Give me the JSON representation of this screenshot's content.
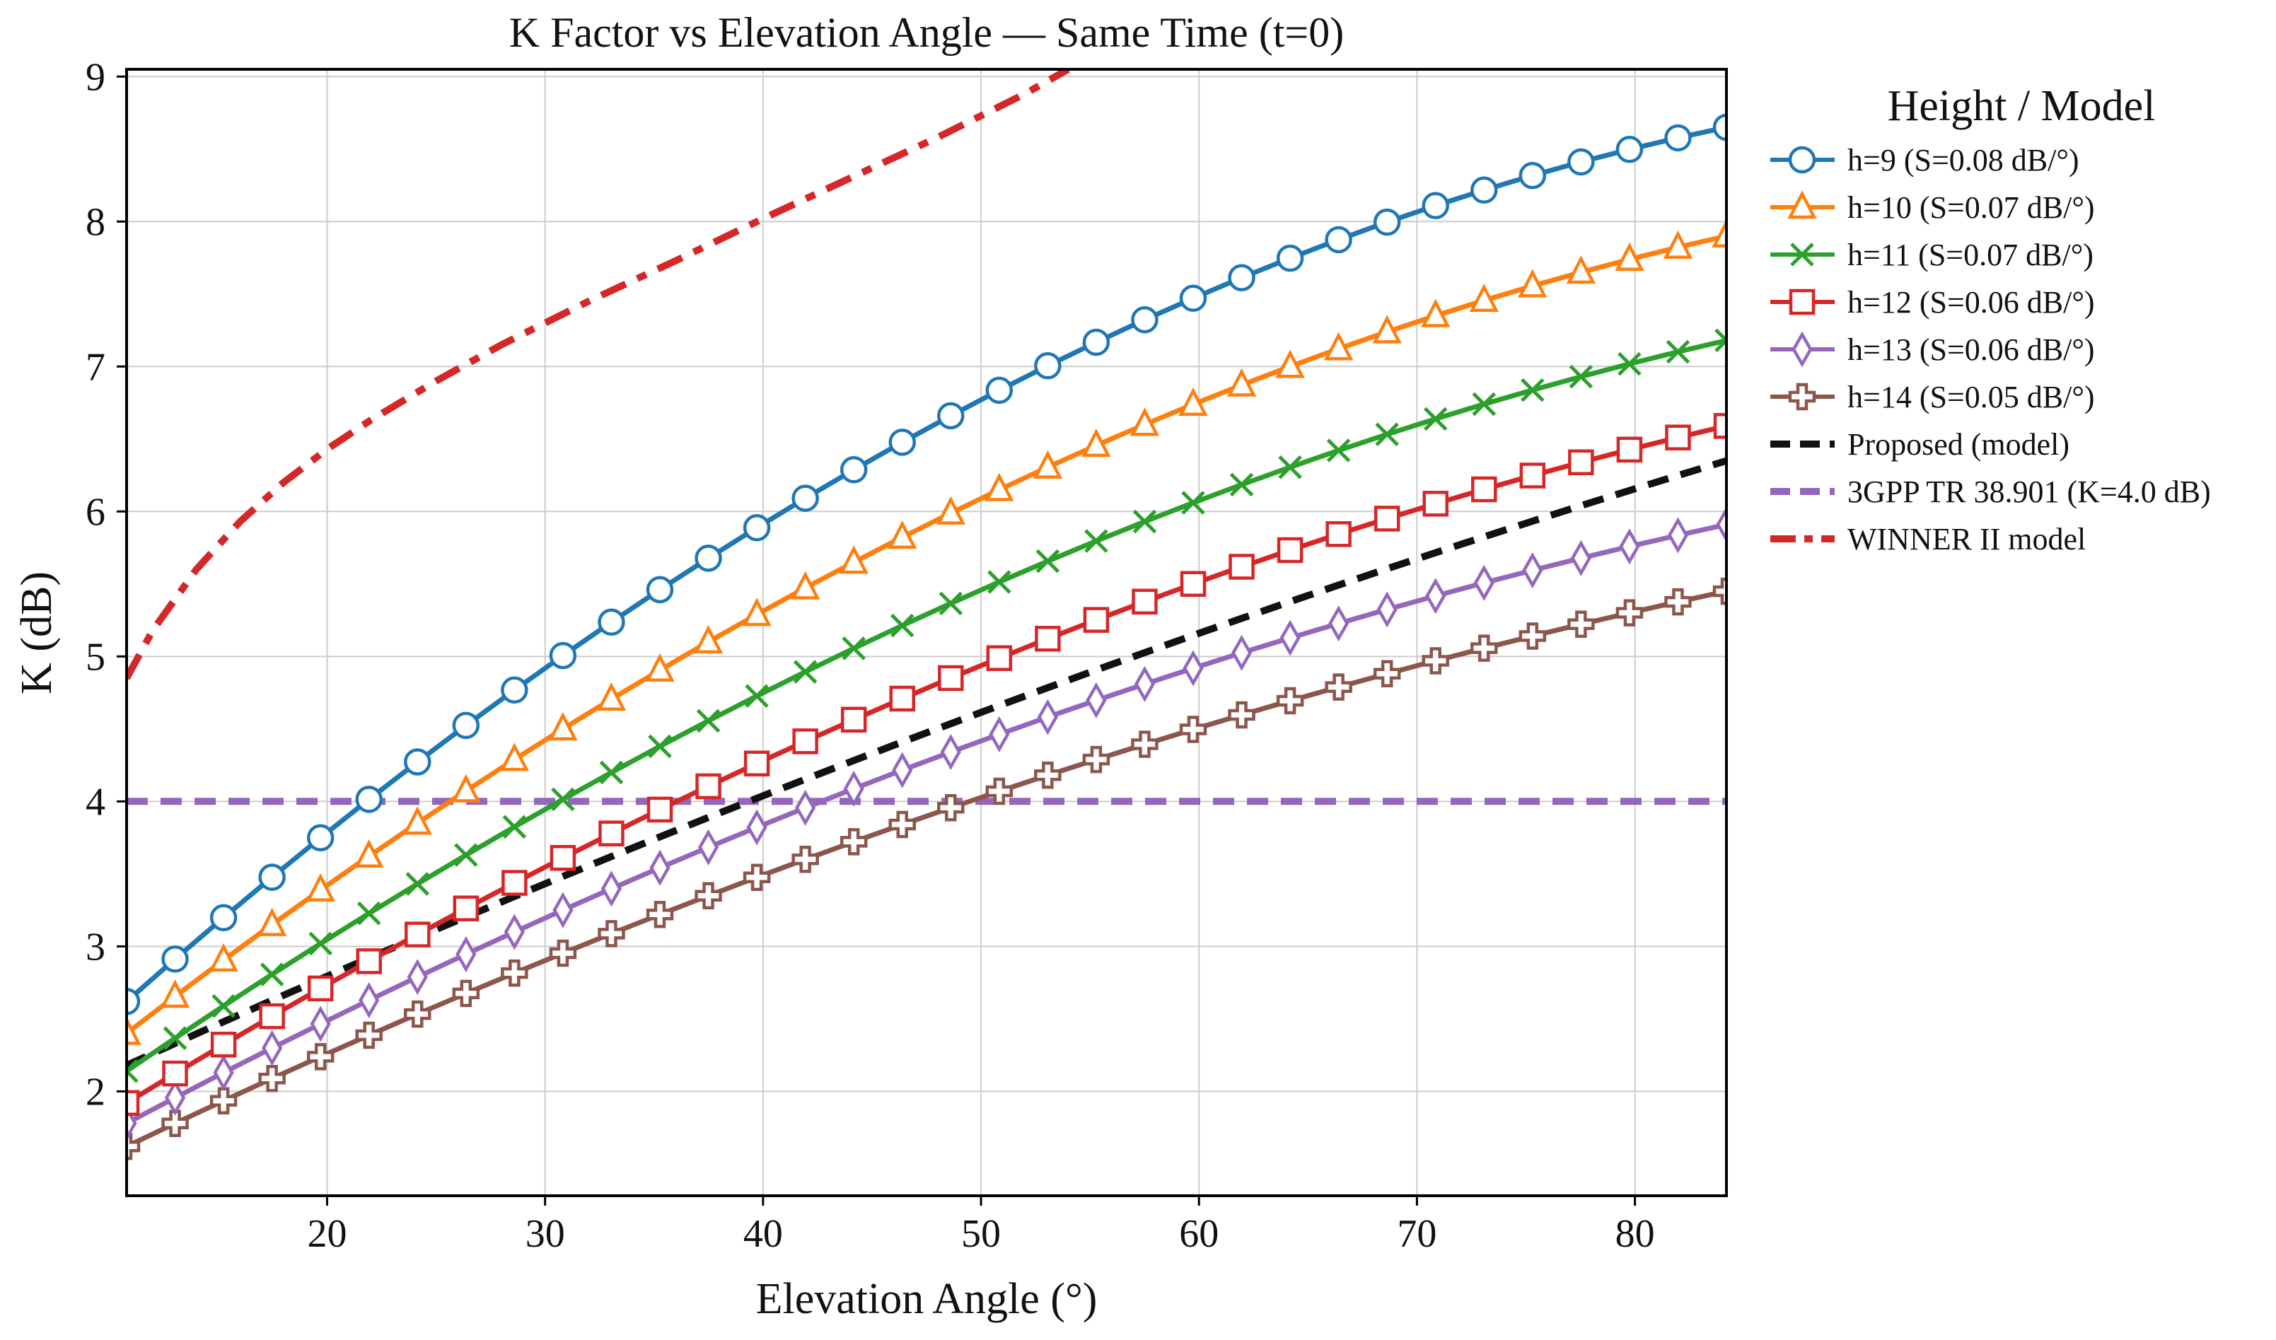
{
  "chart_data": {
    "type": "line",
    "title": "K Factor vs Elevation Angle — Same Time (t=0)",
    "xlabel": "Elevation Angle (°)",
    "ylabel": "K (dB)",
    "xlim": [
      10.8,
      84.2
    ],
    "ylim": [
      1.28,
      9.05
    ],
    "xticks": [
      20,
      30,
      40,
      50,
      60,
      70,
      80
    ],
    "yticks": [
      2,
      3,
      4,
      5,
      6,
      7,
      8,
      9
    ],
    "grid": true,
    "legend_title": "Height / Model",
    "legend_position": "outside-right",
    "x_range": [
      10.8,
      84.2
    ],
    "num_points": 34,
    "series": [
      {
        "name": "h=9 (S=0.08 dB/°)",
        "color": "#1f77b4",
        "marker": "circle",
        "style": "solid",
        "start": 2.62,
        "end": 8.65,
        "curvature": 0.62
      },
      {
        "name": "h=10 (S=0.07 dB/°)",
        "color": "#ff7f0e",
        "marker": "triangle",
        "style": "solid",
        "start": 2.4,
        "end": 7.9,
        "curvature": 0.55
      },
      {
        "name": "h=11 (S=0.07 dB/°)",
        "color": "#2ca02c",
        "marker": "x",
        "style": "solid",
        "start": 2.14,
        "end": 7.18,
        "curvature": 0.5
      },
      {
        "name": "h=12 (S=0.06 dB/°)",
        "color": "#d62728",
        "marker": "square",
        "style": "solid",
        "start": 1.92,
        "end": 6.59,
        "curvature": 0.45
      },
      {
        "name": "h=13 (S=0.06 dB/°)",
        "color": "#9467bd",
        "marker": "diamond",
        "style": "solid",
        "start": 1.78,
        "end": 5.91,
        "curvature": 0.42
      },
      {
        "name": "h=14 (S=0.05 dB/°)",
        "color": "#8c564b",
        "marker": "plus",
        "style": "solid",
        "start": 1.62,
        "end": 5.45,
        "curvature": 0.38
      },
      {
        "name": "Proposed (model)",
        "color": "#111111",
        "marker": "none",
        "style": "dashed",
        "start": 2.18,
        "end": 6.35,
        "curvature": 0.2
      },
      {
        "name": "3GPP TR 38.901 (K=4.0 dB)",
        "color": "#9467bd",
        "marker": "none",
        "style": "dashed",
        "constant": 4.0
      },
      {
        "name": "WINNER II model",
        "color": "#d62728",
        "marker": "none",
        "style": "dashdot",
        "x": [
          10.8,
          12,
          14,
          16,
          18,
          20,
          22,
          25,
          28,
          32,
          36,
          40,
          44,
          48,
          52,
          54
        ],
        "values": [
          4.85,
          5.18,
          5.6,
          5.93,
          6.2,
          6.43,
          6.63,
          6.9,
          7.15,
          7.45,
          7.73,
          8.02,
          8.3,
          8.58,
          8.88,
          9.05
        ]
      }
    ]
  }
}
